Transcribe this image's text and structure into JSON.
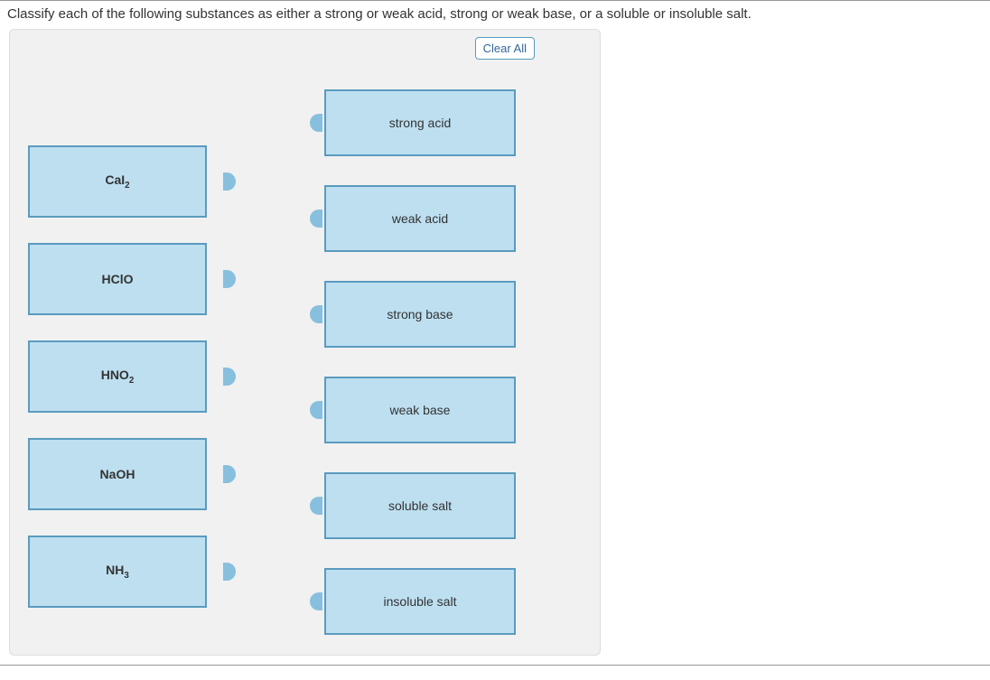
{
  "question_text": "Classify each of the following substances as either a strong or weak acid, strong or weak base, or a soluble or insoluble salt.",
  "clear_label": "Clear All",
  "substances": [
    {
      "formula_html": "CaI<sub>2</sub>"
    },
    {
      "formula_html": "HClO"
    },
    {
      "formula_html": "HNO<sub>2</sub>"
    },
    {
      "formula_html": "NaOH"
    },
    {
      "formula_html": "NH<sub>3</sub>"
    }
  ],
  "categories": [
    {
      "label": "strong acid"
    },
    {
      "label": "weak acid"
    },
    {
      "label": "strong base"
    },
    {
      "label": "weak base"
    },
    {
      "label": "soluble salt"
    },
    {
      "label": "insoluble salt"
    }
  ],
  "colors": {
    "card_fill": "#bddff0",
    "card_border": "#5a9bbf",
    "panel_bg": "#f1f1f1",
    "nub": "#87c0de",
    "link_blue": "#336699"
  }
}
